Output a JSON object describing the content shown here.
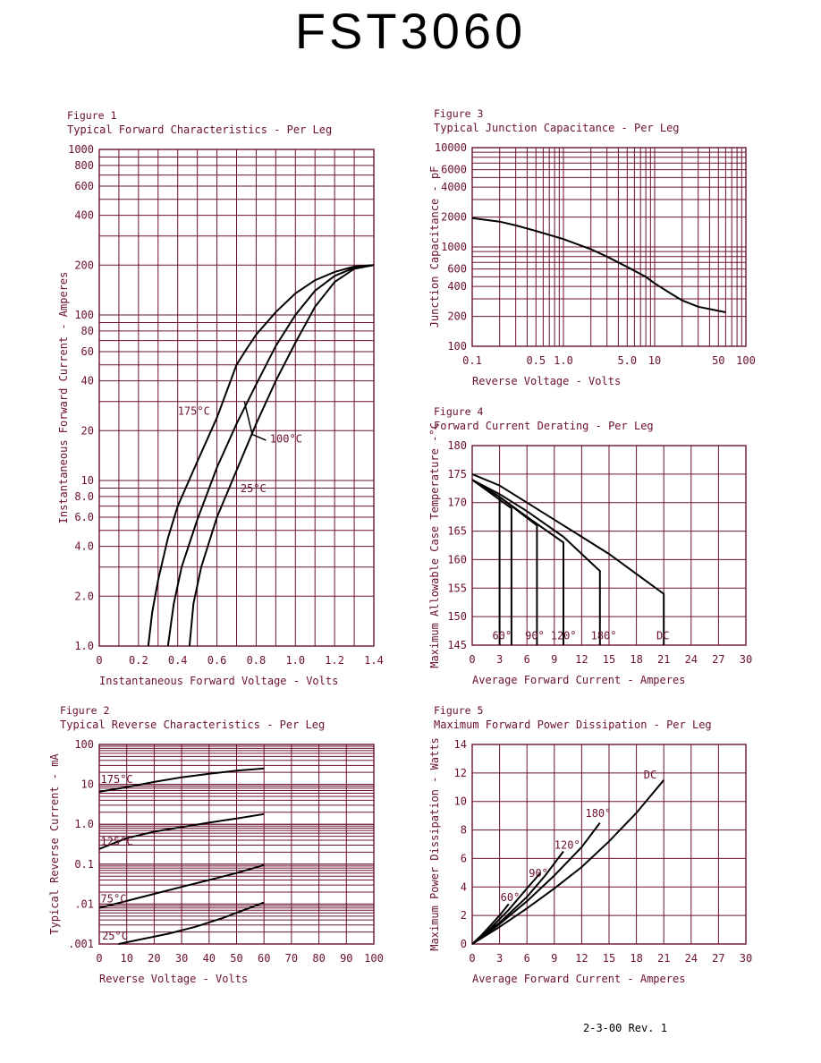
{
  "page": {
    "part_number": "FST3060",
    "revision": "2-3-00   Rev. 1"
  },
  "style": {
    "grid_color": "#6b1030",
    "curve_color": "#000000",
    "text_color": "#6b1030"
  },
  "chart_data": [
    {
      "id": "fig1",
      "type": "line",
      "figure_label": "Figure 1",
      "title": "Typical Forward Characteristics - Per Leg",
      "xlabel": "Instantaneous Forward Voltage - Volts",
      "ylabel": "Instantaneous Forward Current - Amperes",
      "x_scale": "linear",
      "y_scale": "log",
      "xlim": [
        0,
        1.4
      ],
      "ylim": [
        1,
        1000
      ],
      "x_ticks": [
        0,
        0.2,
        0.4,
        0.6,
        0.8,
        1.0,
        1.2,
        1.4
      ],
      "x_tick_labels": [
        "0",
        "0.2",
        "0.4",
        "0.6",
        "0.8",
        "1.0",
        "1.2",
        "1.4"
      ],
      "y_ticks": [
        1,
        2,
        4,
        6,
        8,
        10,
        20,
        40,
        60,
        80,
        100,
        200,
        400,
        600,
        800,
        1000
      ],
      "y_tick_labels": [
        "1.0",
        "2.0",
        "4.0",
        "6.0",
        "8.0",
        "10",
        "20",
        "40",
        "60",
        "80",
        "100",
        "200",
        "400",
        "600",
        "800",
        "1000"
      ],
      "x_grid": [
        0,
        0.1,
        0.2,
        0.3,
        0.4,
        0.5,
        0.6,
        0.7,
        0.8,
        0.9,
        1.0,
        1.1,
        1.2,
        1.3,
        1.4
      ],
      "y_grid": [
        1,
        2,
        3,
        4,
        5,
        6,
        7,
        8,
        9,
        10,
        20,
        30,
        40,
        50,
        60,
        70,
        80,
        90,
        100,
        200,
        300,
        400,
        500,
        600,
        700,
        800,
        900,
        1000
      ],
      "grid": true,
      "series": [
        {
          "name": "175°C",
          "points": [
            [
              0.25,
              1.0
            ],
            [
              0.27,
              1.6
            ],
            [
              0.3,
              2.5
            ],
            [
              0.35,
              4.5
            ],
            [
              0.4,
              7.0
            ],
            [
              0.5,
              13
            ],
            [
              0.6,
              24
            ],
            [
              0.7,
              50
            ],
            [
              0.75,
              62
            ],
            [
              0.8,
              76
            ],
            [
              0.9,
              104
            ],
            [
              1.0,
              135
            ],
            [
              1.1,
              162
            ],
            [
              1.2,
              182
            ],
            [
              1.3,
              196
            ],
            [
              1.4,
              200
            ]
          ]
        },
        {
          "name": "100°C",
          "points": [
            [
              0.35,
              1.0
            ],
            [
              0.38,
              1.8
            ],
            [
              0.42,
              3.0
            ],
            [
              0.5,
              5.8
            ],
            [
              0.6,
              12
            ],
            [
              0.7,
              22
            ],
            [
              0.8,
              38
            ],
            [
              0.9,
              65
            ],
            [
              1.0,
              100
            ],
            [
              1.1,
              140
            ],
            [
              1.2,
              172
            ],
            [
              1.3,
              193
            ],
            [
              1.4,
              200
            ]
          ]
        },
        {
          "name": "25°C",
          "points": [
            [
              0.46,
              1.0
            ],
            [
              0.48,
              1.8
            ],
            [
              0.52,
              3.0
            ],
            [
              0.6,
              6.0
            ],
            [
              0.7,
              11.5
            ],
            [
              0.8,
              22
            ],
            [
              0.9,
              40
            ],
            [
              1.0,
              68
            ],
            [
              1.1,
              112
            ],
            [
              1.2,
              158
            ],
            [
              1.3,
              190
            ],
            [
              1.4,
              200
            ]
          ]
        }
      ],
      "annotations": [
        {
          "text": "175°C",
          "x": 0.4,
          "y": 25
        },
        {
          "text": "100°C",
          "x": 0.87,
          "y": 17
        },
        {
          "text": "25°C",
          "x": 0.72,
          "y": 8.5
        }
      ]
    },
    {
      "id": "fig2",
      "type": "line",
      "figure_label": "Figure 2",
      "title": "Typical Reverse Characteristics - Per Leg",
      "xlabel": "Reverse Voltage - Volts",
      "ylabel": "Typical Reverse Current - mA",
      "x_scale": "linear",
      "y_scale": "log",
      "xlim": [
        0,
        100
      ],
      "ylim": [
        0.001,
        100
      ],
      "x_ticks": [
        0,
        10,
        20,
        30,
        40,
        50,
        60,
        70,
        80,
        90,
        100
      ],
      "x_tick_labels": [
        "0",
        "10",
        "20",
        "30",
        "40",
        "50",
        "60",
        "70",
        "80",
        "90",
        "100"
      ],
      "y_ticks": [
        0.001,
        0.01,
        0.1,
        1,
        10,
        100
      ],
      "y_tick_labels": [
        ".001",
        ".01",
        "0.1",
        "1.0",
        "10",
        "100"
      ],
      "x_grid": [
        0,
        10,
        20,
        30,
        40,
        50,
        60,
        70,
        80,
        90,
        100
      ],
      "y_grid_decades_minor": true,
      "grid": true,
      "series": [
        {
          "name": "175°C",
          "points": [
            [
              0,
              6.5
            ],
            [
              10,
              8.5
            ],
            [
              20,
              11.5
            ],
            [
              30,
              15
            ],
            [
              40,
              18.5
            ],
            [
              50,
              22
            ],
            [
              60,
              25
            ]
          ]
        },
        {
          "name": "125°C",
          "points": [
            [
              0,
              0.24
            ],
            [
              10,
              0.45
            ],
            [
              20,
              0.65
            ],
            [
              30,
              0.85
            ],
            [
              40,
              1.1
            ],
            [
              50,
              1.4
            ],
            [
              60,
              1.8
            ]
          ]
        },
        {
          "name": "75°C",
          "points": [
            [
              0,
              0.008
            ],
            [
              10,
              0.012
            ],
            [
              20,
              0.018
            ],
            [
              30,
              0.027
            ],
            [
              40,
              0.04
            ],
            [
              50,
              0.06
            ],
            [
              60,
              0.095
            ]
          ]
        },
        {
          "name": "25°C",
          "points": [
            [
              7,
              0.001
            ],
            [
              15,
              0.0013
            ],
            [
              25,
              0.0018
            ],
            [
              35,
              0.0027
            ],
            [
              45,
              0.0045
            ],
            [
              60,
              0.011
            ]
          ]
        }
      ],
      "annotations": [
        {
          "text": "175°C",
          "x": 0.5,
          "y": 11
        },
        {
          "text": "125°C",
          "x": 0.5,
          "y": 0.3
        },
        {
          "text": "75°C",
          "x": 0.5,
          "y": 0.011
        },
        {
          "text": "25°C",
          "x": 1.0,
          "y": 0.0013
        }
      ]
    },
    {
      "id": "fig3",
      "type": "line",
      "figure_label": "Figure 3",
      "title": "Typical Junction Capacitance - Per Leg",
      "xlabel": "Reverse Voltage - Volts",
      "ylabel": "Junction Capacitance - pF",
      "x_scale": "log",
      "y_scale": "log",
      "xlim": [
        0.1,
        100
      ],
      "ylim": [
        100,
        10000
      ],
      "x_ticks": [
        0.1,
        0.5,
        1.0,
        5.0,
        10,
        50,
        100
      ],
      "x_tick_labels": [
        "0.1",
        "0.5",
        "1.0",
        "5.0",
        "10",
        "50",
        "100"
      ],
      "y_ticks": [
        100,
        200,
        400,
        600,
        1000,
        2000,
        4000,
        6000,
        10000
      ],
      "y_tick_labels": [
        "100",
        "200",
        "400",
        "600",
        "1000",
        "2000",
        "4000",
        "6000",
        "10000"
      ],
      "grid": true,
      "series": [
        {
          "name": "",
          "points": [
            [
              0.1,
              1950
            ],
            [
              0.2,
              1800
            ],
            [
              0.3,
              1650
            ],
            [
              0.5,
              1450
            ],
            [
              1.0,
              1200
            ],
            [
              2.0,
              950
            ],
            [
              3.0,
              800
            ],
            [
              5.0,
              630
            ],
            [
              8.0,
              500
            ],
            [
              10,
              430
            ],
            [
              15,
              340
            ],
            [
              20,
              290
            ],
            [
              30,
              250
            ],
            [
              60,
              220
            ]
          ]
        }
      ]
    },
    {
      "id": "fig4",
      "type": "line",
      "figure_label": "Figure 4",
      "title": "Forward Current Derating - Per Leg",
      "xlabel": "Average Forward Current - Amperes",
      "ylabel": "Maximum Allowable Case Temperature -°C",
      "x_scale": "linear",
      "y_scale": "linear",
      "xlim": [
        0,
        30
      ],
      "ylim": [
        145,
        180
      ],
      "x_ticks": [
        0,
        3,
        6,
        9,
        12,
        15,
        18,
        21,
        24,
        27,
        30
      ],
      "x_tick_labels": [
        "0",
        "3",
        "6",
        "9",
        "12",
        "15",
        "18",
        "21",
        "24",
        "27",
        "30"
      ],
      "y_ticks": [
        145,
        150,
        155,
        160,
        165,
        170,
        175,
        180
      ],
      "y_tick_labels": [
        "145",
        "150",
        "155",
        "160",
        "165",
        "170",
        "175",
        "180"
      ],
      "grid": true,
      "series": [
        {
          "name": "60°",
          "points": [
            [
              0,
              174
            ],
            [
              3.0,
              171
            ],
            [
              3.0,
              145
            ]
          ]
        },
        {
          "name": "90°",
          "points": [
            [
              0,
              174
            ],
            [
              4.3,
              169
            ],
            [
              4.3,
              145
            ]
          ]
        },
        {
          "name": "120°",
          "points": [
            [
              0,
              174
            ],
            [
              3,
              171
            ],
            [
              7.1,
              166
            ],
            [
              7.1,
              145
            ]
          ]
        },
        {
          "name": "180°",
          "points": [
            [
              0,
              174
            ],
            [
              3,
              171
            ],
            [
              6,
              167.5
            ],
            [
              10,
              163
            ],
            [
              10,
              145
            ]
          ]
        },
        {
          "name": "",
          "points": [
            [
              0,
              174
            ],
            [
              3,
              171.5
            ],
            [
              6,
              168.5
            ],
            [
              10,
              164
            ],
            [
              14,
              158
            ],
            [
              14,
              145
            ]
          ]
        },
        {
          "name": "DC",
          "points": [
            [
              0,
              175
            ],
            [
              3,
              173
            ],
            [
              6,
              170
            ],
            [
              9,
              167
            ],
            [
              12,
              164
            ],
            [
              15,
              161
            ],
            [
              18,
              157.5
            ],
            [
              21,
              154
            ],
            [
              21,
              145
            ]
          ]
        }
      ],
      "annotations": [
        {
          "text": "60°",
          "x": 2.2,
          "y": 146
        },
        {
          "text": "90°",
          "x": 5.8,
          "y": 146
        },
        {
          "text": "120°",
          "x": 8.6,
          "y": 146
        },
        {
          "text": "180°",
          "x": 13.0,
          "y": 146
        },
        {
          "text": "DC",
          "x": 20.2,
          "y": 146
        }
      ]
    },
    {
      "id": "fig5",
      "type": "line",
      "figure_label": "Figure 5",
      "title": "Maximum Forward Power Dissipation - Per Leg",
      "xlabel": "Average Forward Current - Amperes",
      "ylabel": "Maximum Power Dissipation - Watts",
      "x_scale": "linear",
      "y_scale": "linear",
      "xlim": [
        0,
        30
      ],
      "ylim": [
        0,
        14
      ],
      "x_ticks": [
        0,
        3,
        6,
        9,
        12,
        15,
        18,
        21,
        24,
        27,
        30
      ],
      "x_tick_labels": [
        "0",
        "3",
        "6",
        "9",
        "12",
        "15",
        "18",
        "21",
        "24",
        "27",
        "30"
      ],
      "y_ticks": [
        0,
        2,
        4,
        6,
        8,
        10,
        12,
        14
      ],
      "y_tick_labels": [
        "0",
        "2",
        "4",
        "6",
        "8",
        "10",
        "12",
        "14"
      ],
      "grid": true,
      "series": [
        {
          "name": "60°",
          "points": [
            [
              0,
              0
            ],
            [
              1,
              0.6
            ],
            [
              2,
              1.3
            ],
            [
              3,
              2.0
            ],
            [
              4,
              2.8
            ]
          ]
        },
        {
          "name": "90°",
          "points": [
            [
              0,
              0
            ],
            [
              2,
              1.1
            ],
            [
              4,
              2.4
            ],
            [
              6,
              3.9
            ],
            [
              7.5,
              5.0
            ]
          ]
        },
        {
          "name": "120°",
          "points": [
            [
              0,
              0
            ],
            [
              3,
              1.5
            ],
            [
              6,
              3.3
            ],
            [
              8,
              4.8
            ],
            [
              10,
              6.5
            ]
          ]
        },
        {
          "name": "180°",
          "points": [
            [
              0,
              0
            ],
            [
              3,
              1.4
            ],
            [
              6,
              3.0
            ],
            [
              9,
              4.8
            ],
            [
              12,
              6.8
            ],
            [
              14,
              8.5
            ]
          ]
        },
        {
          "name": "DC",
          "points": [
            [
              0,
              0
            ],
            [
              3,
              1.2
            ],
            [
              6,
              2.5
            ],
            [
              9,
              3.9
            ],
            [
              12,
              5.4
            ],
            [
              15,
              7.2
            ],
            [
              18,
              9.2
            ],
            [
              21,
              11.5
            ]
          ]
        }
      ],
      "annotations": [
        {
          "text": "60°",
          "x": 3.1,
          "y": 3.0
        },
        {
          "text": "90°",
          "x": 6.2,
          "y": 4.7
        },
        {
          "text": "120°",
          "x": 9.0,
          "y": 6.7
        },
        {
          "text": "180°",
          "x": 12.4,
          "y": 8.9
        },
        {
          "text": "DC",
          "x": 18.8,
          "y": 11.6
        }
      ]
    }
  ]
}
